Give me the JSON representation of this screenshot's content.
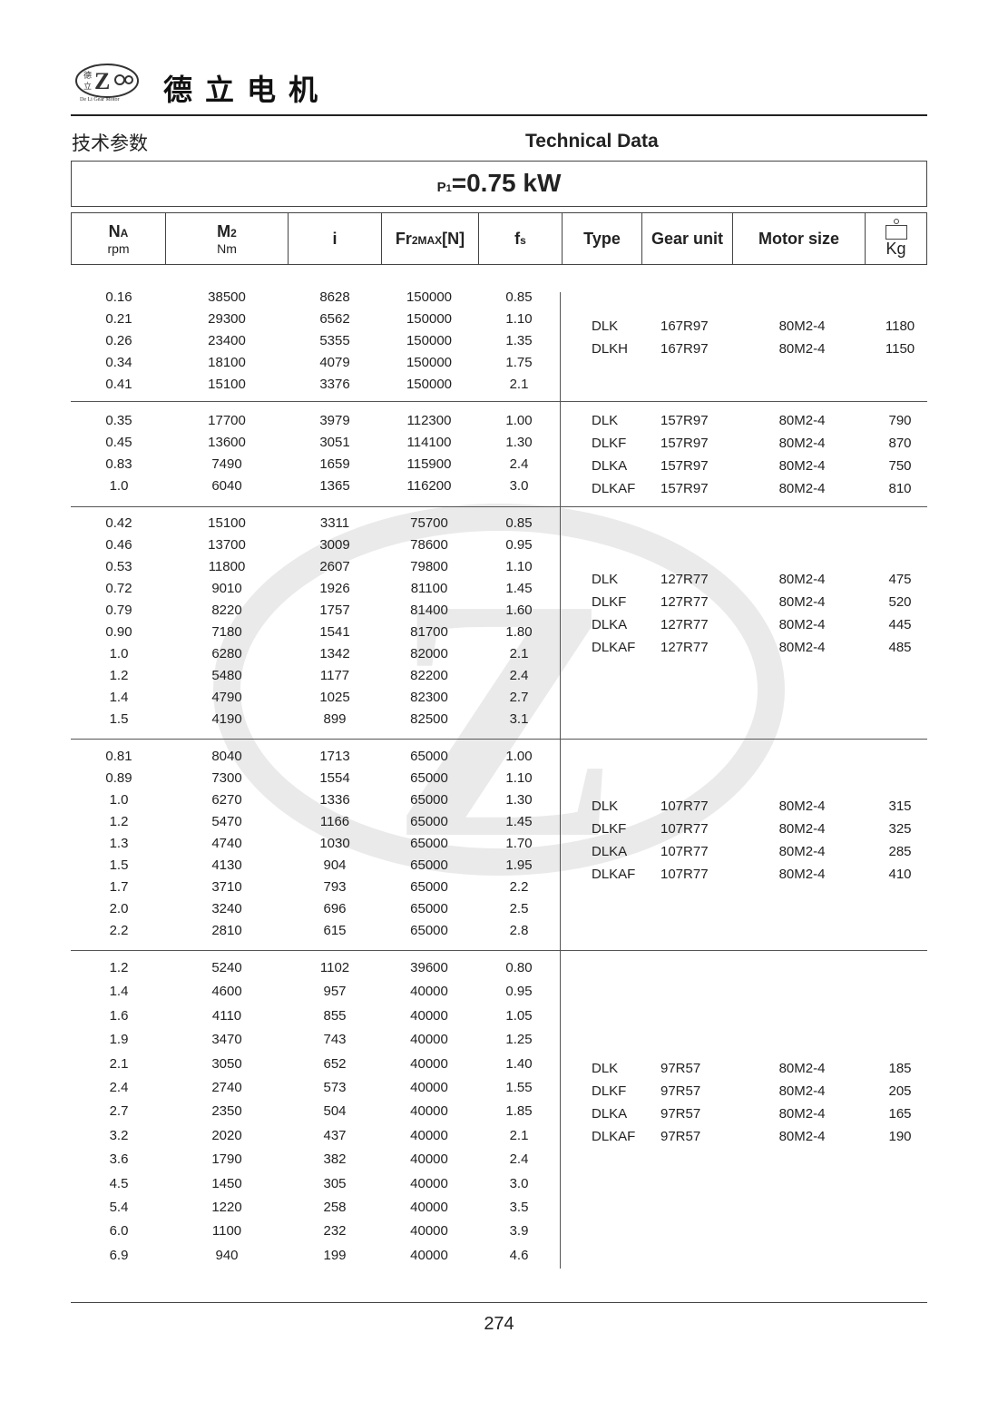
{
  "header": {
    "brand_cn": "德立电机",
    "logo_text": "De Li Gear Motor",
    "logo_chars": "德立"
  },
  "titles": {
    "cn": "技术参数",
    "en": "Technical Data"
  },
  "power": {
    "label": "P",
    "sub": "1",
    "value": "=0.75 kW"
  },
  "columns": {
    "na": "N",
    "na_sub": "A",
    "na_unit": "rpm",
    "m2": "M",
    "m2_sub": "2",
    "m2_unit": "Nm",
    "i": "i",
    "fr": "Fr",
    "fr_sub": "2MAX",
    "fr_unit": "[N]",
    "fs": "f",
    "fs_sub": "s",
    "type": "Type",
    "gear": "Gear unit",
    "motor": "Motor size",
    "kg": "Kg"
  },
  "groups": [
    {
      "rows": [
        [
          "0.16",
          "38500",
          "8628",
          "150000",
          "0.85"
        ],
        [
          "0.21",
          "29300",
          "6562",
          "150000",
          "1.10"
        ],
        [
          "0.26",
          "23400",
          "5355",
          "150000",
          "1.35"
        ],
        [
          "0.34",
          "18100",
          "4079",
          "150000",
          "1.75"
        ],
        [
          "0.41",
          "15100",
          "3376",
          "150000",
          "2.1"
        ]
      ],
      "variants": [
        [
          "DLK",
          "167R97",
          "80M2-4",
          "1180"
        ],
        [
          "DLKH",
          "167R97",
          "80M2-4",
          "1150"
        ]
      ]
    },
    {
      "rows": [
        [
          "0.35",
          "17700",
          "3979",
          "112300",
          "1.00"
        ],
        [
          "0.45",
          "13600",
          "3051",
          "114100",
          "1.30"
        ],
        [
          "0.83",
          "7490",
          "1659",
          "115900",
          "2.4"
        ],
        [
          "1.0",
          "6040",
          "1365",
          "116200",
          "3.0"
        ]
      ],
      "variants": [
        [
          "DLK",
          "157R97",
          "80M2-4",
          "790"
        ],
        [
          "DLKF",
          "157R97",
          "80M2-4",
          "870"
        ],
        [
          "DLKA",
          "157R97",
          "80M2-4",
          "750"
        ],
        [
          "DLKAF",
          "157R97",
          "80M2-4",
          "810"
        ]
      ]
    },
    {
      "rows": [
        [
          "0.42",
          "15100",
          "3311",
          "75700",
          "0.85"
        ],
        [
          "0.46",
          "13700",
          "3009",
          "78600",
          "0.95"
        ],
        [
          "0.53",
          "11800",
          "2607",
          "79800",
          "1.10"
        ],
        [
          "0.72",
          "9010",
          "1926",
          "81100",
          "1.45"
        ],
        [
          "0.79",
          "8220",
          "1757",
          "81400",
          "1.60"
        ],
        [
          "0.90",
          "7180",
          "1541",
          "81700",
          "1.80"
        ],
        [
          "1.0",
          "6280",
          "1342",
          "82000",
          "2.1"
        ],
        [
          "1.2",
          "5480",
          "1177",
          "82200",
          "2.4"
        ],
        [
          "1.4",
          "4790",
          "1025",
          "82300",
          "2.7"
        ],
        [
          "1.5",
          "4190",
          "899",
          "82500",
          "3.1"
        ]
      ],
      "variants": [
        [
          "DLK",
          "127R77",
          "80M2-4",
          "475"
        ],
        [
          "DLKF",
          "127R77",
          "80M2-4",
          "520"
        ],
        [
          "DLKA",
          "127R77",
          "80M2-4",
          "445"
        ],
        [
          "DLKAF",
          "127R77",
          "80M2-4",
          "485"
        ]
      ]
    },
    {
      "rows": [
        [
          "0.81",
          "8040",
          "1713",
          "65000",
          "1.00"
        ],
        [
          "0.89",
          "7300",
          "1554",
          "65000",
          "1.10"
        ],
        [
          "1.0",
          "6270",
          "1336",
          "65000",
          "1.30"
        ],
        [
          "1.2",
          "5470",
          "1166",
          "65000",
          "1.45"
        ],
        [
          "1.3",
          "4740",
          "1030",
          "65000",
          "1.70"
        ],
        [
          "1.5",
          "4130",
          "904",
          "65000",
          "1.95"
        ],
        [
          "1.7",
          "3710",
          "793",
          "65000",
          "2.2"
        ],
        [
          "2.0",
          "3240",
          "696",
          "65000",
          "2.5"
        ],
        [
          "2.2",
          "2810",
          "615",
          "65000",
          "2.8"
        ]
      ],
      "variants": [
        [
          "DLK",
          "107R77",
          "80M2-4",
          "315"
        ],
        [
          "DLKF",
          "107R77",
          "80M2-4",
          "325"
        ],
        [
          "DLKA",
          "107R77",
          "80M2-4",
          "285"
        ],
        [
          "DLKAF",
          "107R77",
          "80M2-4",
          "410"
        ]
      ]
    },
    {
      "rows": [
        [
          "1.2",
          "5240",
          "1102",
          "39600",
          "0.80"
        ],
        [
          "1.4",
          "4600",
          "957",
          "40000",
          "0.95"
        ],
        [
          "1.6",
          "4110",
          "855",
          "40000",
          "1.05"
        ],
        [
          "1.9",
          "3470",
          "743",
          "40000",
          "1.25"
        ],
        [
          "2.1",
          "3050",
          "652",
          "40000",
          "1.40"
        ],
        [
          "2.4",
          "2740",
          "573",
          "40000",
          "1.55"
        ],
        [
          "2.7",
          "2350",
          "504",
          "40000",
          "1.85"
        ],
        [
          "3.2",
          "2020",
          "437",
          "40000",
          "2.1"
        ],
        [
          "3.6",
          "1790",
          "382",
          "40000",
          "2.4"
        ],
        [
          "4.5",
          "1450",
          "305",
          "40000",
          "3.0"
        ],
        [
          "5.4",
          "1220",
          "258",
          "40000",
          "3.5"
        ],
        [
          "6.0",
          "1100",
          "232",
          "40000",
          "3.9"
        ],
        [
          "6.9",
          "940",
          "199",
          "40000",
          "4.6"
        ]
      ],
      "variants": [
        [
          "DLK",
          "97R57",
          "80M2-4",
          "185"
        ],
        [
          "DLKF",
          "97R57",
          "80M2-4",
          "205"
        ],
        [
          "DLKA",
          "97R57",
          "80M2-4",
          "165"
        ],
        [
          "DLKAF",
          "97R57",
          "80M2-4",
          "190"
        ]
      ]
    }
  ],
  "footer": {
    "page": "274"
  }
}
